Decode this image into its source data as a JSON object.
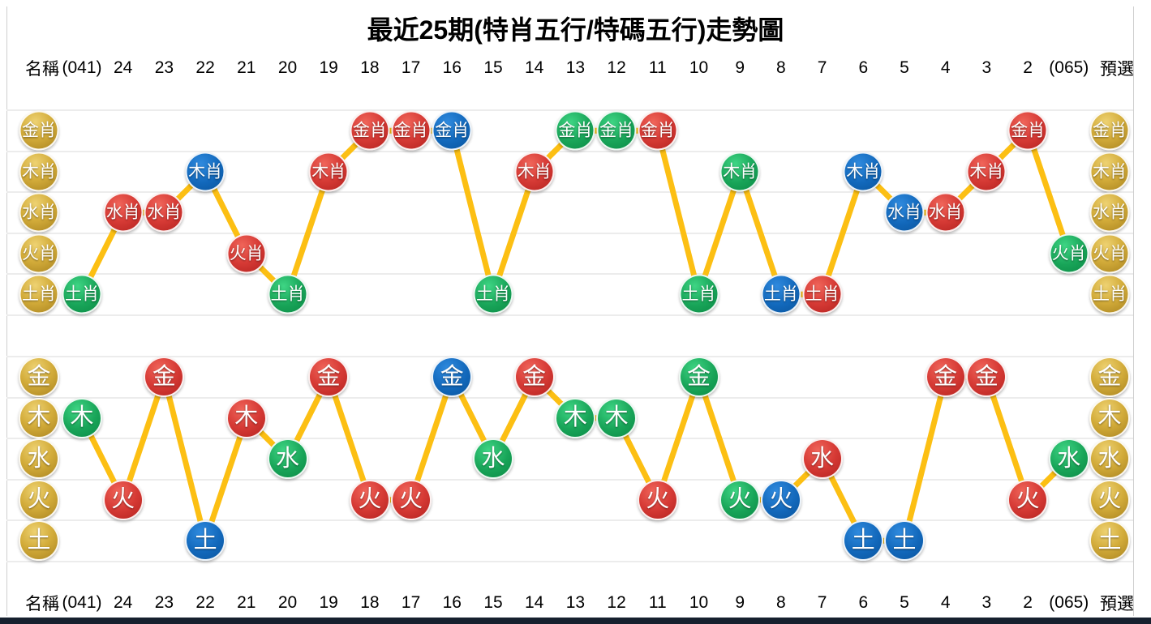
{
  "title": "最近25期(特肖五行/特碼五行)走勢圖",
  "columns": [
    "名稱",
    "(041)",
    "24",
    "23",
    "22",
    "21",
    "20",
    "19",
    "18",
    "17",
    "16",
    "15",
    "14",
    "13",
    "12",
    "11",
    "10",
    "9",
    "8",
    "7",
    "6",
    "5",
    "4",
    "3",
    "2",
    "(065)",
    "預選"
  ],
  "colors": {
    "red": "#d63a35",
    "green": "#18a458",
    "blue": "#1268bb",
    "gold": "#d3ac3a",
    "line": "#fcbf13",
    "gridline": "#ececec",
    "bottom_bar": "#16202e"
  },
  "chart_data": [
    {
      "type": "line",
      "title": "特肖五行",
      "rows": [
        "金肖",
        "木肖",
        "水肖",
        "火肖",
        "土肖"
      ],
      "categories": [
        "(041)",
        "24",
        "23",
        "22",
        "21",
        "20",
        "19",
        "18",
        "17",
        "16",
        "15",
        "14",
        "13",
        "12",
        "11",
        "10",
        "9",
        "8",
        "7",
        "6",
        "5",
        "4",
        "3",
        "2",
        "(065)"
      ],
      "points": [
        {
          "col": "(041)",
          "value": "土肖",
          "color": "green"
        },
        {
          "col": "24",
          "value": "水肖",
          "color": "red"
        },
        {
          "col": "23",
          "value": "水肖",
          "color": "red"
        },
        {
          "col": "22",
          "value": "木肖",
          "color": "blue"
        },
        {
          "col": "21",
          "value": "火肖",
          "color": "red"
        },
        {
          "col": "20",
          "value": "土肖",
          "color": "green"
        },
        {
          "col": "19",
          "value": "木肖",
          "color": "red"
        },
        {
          "col": "18",
          "value": "金肖",
          "color": "red"
        },
        {
          "col": "17",
          "value": "金肖",
          "color": "red"
        },
        {
          "col": "16",
          "value": "金肖",
          "color": "blue"
        },
        {
          "col": "15",
          "value": "土肖",
          "color": "green"
        },
        {
          "col": "14",
          "value": "木肖",
          "color": "red"
        },
        {
          "col": "13",
          "value": "金肖",
          "color": "green"
        },
        {
          "col": "12",
          "value": "金肖",
          "color": "green"
        },
        {
          "col": "11",
          "value": "金肖",
          "color": "red"
        },
        {
          "col": "10",
          "value": "土肖",
          "color": "green"
        },
        {
          "col": "9",
          "value": "木肖",
          "color": "green"
        },
        {
          "col": "8",
          "value": "土肖",
          "color": "blue"
        },
        {
          "col": "7",
          "value": "土肖",
          "color": "red"
        },
        {
          "col": "6",
          "value": "木肖",
          "color": "blue"
        },
        {
          "col": "5",
          "value": "水肖",
          "color": "blue"
        },
        {
          "col": "4",
          "value": "水肖",
          "color": "red"
        },
        {
          "col": "3",
          "value": "木肖",
          "color": "red"
        },
        {
          "col": "2",
          "value": "金肖",
          "color": "red"
        },
        {
          "col": "(065)",
          "value": "火肖",
          "color": "green"
        }
      ]
    },
    {
      "type": "line",
      "title": "特碼五行",
      "rows": [
        "金",
        "木",
        "水",
        "火",
        "土"
      ],
      "categories": [
        "(041)",
        "24",
        "23",
        "22",
        "21",
        "20",
        "19",
        "18",
        "17",
        "16",
        "15",
        "14",
        "13",
        "12",
        "11",
        "10",
        "9",
        "8",
        "7",
        "6",
        "5",
        "4",
        "3",
        "2",
        "(065)"
      ],
      "points": [
        {
          "col": "(041)",
          "value": "木",
          "color": "green"
        },
        {
          "col": "24",
          "value": "火",
          "color": "red"
        },
        {
          "col": "23",
          "value": "金",
          "color": "red"
        },
        {
          "col": "22",
          "value": "土",
          "color": "blue"
        },
        {
          "col": "21",
          "value": "木",
          "color": "red"
        },
        {
          "col": "20",
          "value": "水",
          "color": "green"
        },
        {
          "col": "19",
          "value": "金",
          "color": "red"
        },
        {
          "col": "18",
          "value": "火",
          "color": "red"
        },
        {
          "col": "17",
          "value": "火",
          "color": "red"
        },
        {
          "col": "16",
          "value": "金",
          "color": "blue"
        },
        {
          "col": "15",
          "value": "水",
          "color": "green"
        },
        {
          "col": "14",
          "value": "金",
          "color": "red"
        },
        {
          "col": "13",
          "value": "木",
          "color": "green"
        },
        {
          "col": "12",
          "value": "木",
          "color": "green"
        },
        {
          "col": "11",
          "value": "火",
          "color": "red"
        },
        {
          "col": "10",
          "value": "金",
          "color": "green"
        },
        {
          "col": "9",
          "value": "火",
          "color": "green"
        },
        {
          "col": "8",
          "value": "火",
          "color": "blue"
        },
        {
          "col": "7",
          "value": "水",
          "color": "red"
        },
        {
          "col": "6",
          "value": "土",
          "color": "blue"
        },
        {
          "col": "5",
          "value": "土",
          "color": "blue"
        },
        {
          "col": "4",
          "value": "金",
          "color": "red"
        },
        {
          "col": "3",
          "value": "金",
          "color": "red"
        },
        {
          "col": "2",
          "value": "火",
          "color": "red"
        },
        {
          "col": "(065)",
          "value": "水",
          "color": "green"
        }
      ]
    }
  ]
}
